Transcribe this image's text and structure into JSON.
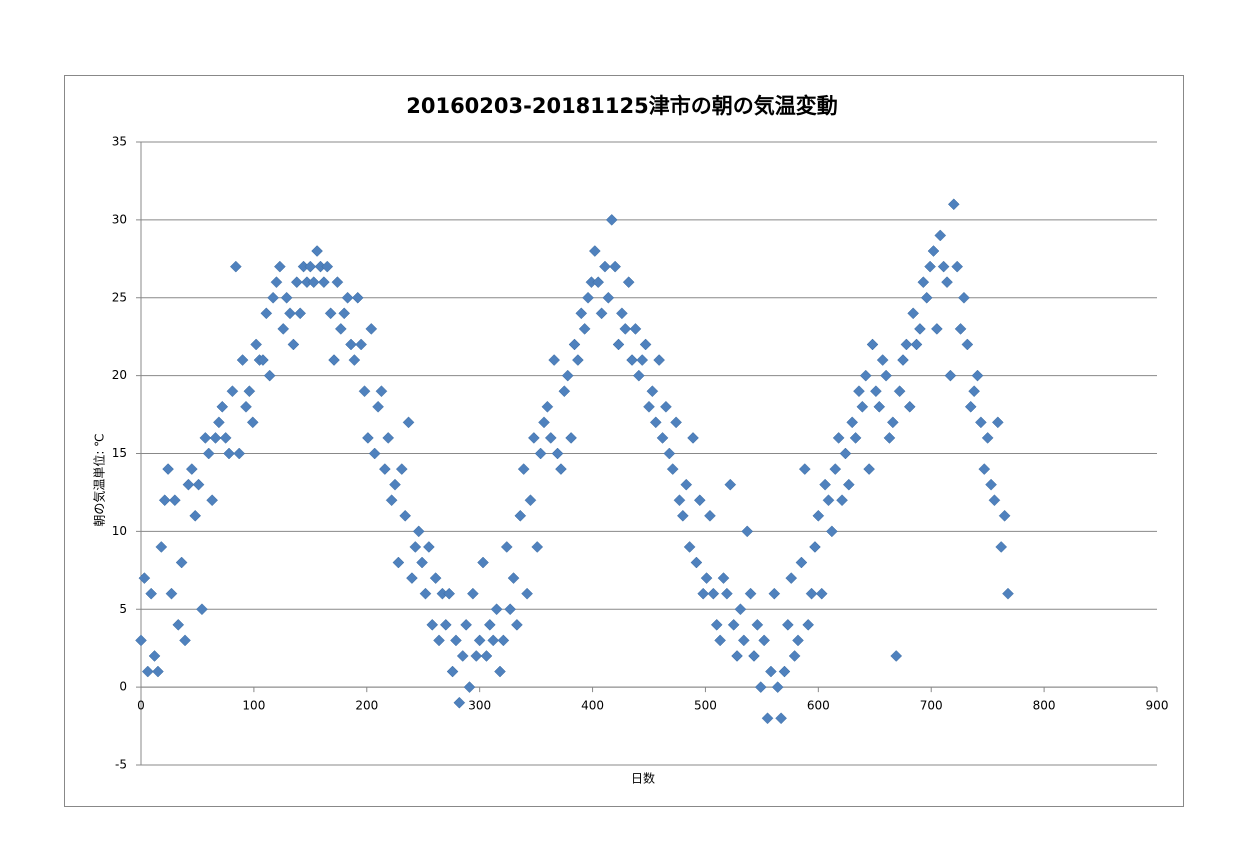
{
  "chart_data": {
    "type": "scatter",
    "title": "20160203-20181125津市の朝の気温変動",
    "x_label": "日数",
    "y_label": "朝の気温単位: ℃",
    "color": "#4f81bd",
    "grid": true,
    "xlim": [
      0,
      900
    ],
    "xticks": [
      0,
      100,
      200,
      300,
      400,
      500,
      600,
      700,
      800,
      900
    ],
    "ylim": [
      -5,
      35
    ],
    "yticks": [
      -5,
      0,
      5,
      10,
      15,
      20,
      25,
      30,
      35
    ],
    "x": [
      0,
      3,
      6,
      9,
      12,
      15,
      18,
      21,
      24,
      27,
      30,
      33,
      36,
      39,
      42,
      45,
      48,
      51,
      54,
      57,
      60,
      63,
      66,
      69,
      72,
      75,
      78,
      81,
      84,
      87,
      90,
      93,
      96,
      99,
      102,
      105,
      108,
      111,
      114,
      117,
      120,
      123,
      126,
      129,
      132,
      135,
      138,
      141,
      144,
      147,
      150,
      153,
      156,
      159,
      162,
      165,
      168,
      171,
      174,
      177,
      180,
      183,
      186,
      189,
      192,
      195,
      198,
      201,
      204,
      207,
      210,
      213,
      216,
      219,
      222,
      225,
      228,
      231,
      234,
      237,
      240,
      243,
      246,
      249,
      252,
      255,
      258,
      261,
      264,
      267,
      270,
      273,
      276,
      279,
      282,
      285,
      288,
      291,
      294,
      297,
      300,
      303,
      306,
      309,
      312,
      315,
      318,
      321,
      324,
      327,
      330,
      333,
      336,
      339,
      342,
      345,
      348,
      351,
      354,
      357,
      360,
      363,
      366,
      369,
      372,
      375,
      378,
      381,
      384,
      387,
      390,
      393,
      396,
      399,
      402,
      405,
      408,
      411,
      414,
      417,
      420,
      423,
      426,
      429,
      432,
      435,
      438,
      441,
      444,
      447,
      450,
      453,
      456,
      459,
      462,
      465,
      468,
      471,
      474,
      477,
      480,
      483,
      486,
      489,
      492,
      495,
      498,
      501,
      504,
      507,
      510,
      513,
      516,
      519,
      522,
      525,
      528,
      531,
      534,
      537,
      540,
      543,
      546,
      549,
      552,
      555,
      558,
      561,
      564,
      567,
      570,
      573,
      576,
      579,
      582,
      585,
      588,
      591,
      594,
      597,
      600,
      603,
      606,
      609,
      612,
      615,
      618,
      621,
      624,
      627,
      630,
      633,
      636,
      639,
      642,
      645,
      648,
      651,
      654,
      657,
      660,
      663,
      666,
      669,
      672,
      675,
      678,
      681,
      684,
      687,
      690,
      693,
      696,
      699,
      702,
      705,
      708,
      711,
      714,
      717,
      720,
      723,
      726,
      729,
      732,
      735,
      738,
      741,
      744,
      747,
      750,
      753,
      756,
      759,
      762,
      765,
      768
    ],
    "values": [
      3,
      7,
      1,
      6,
      2,
      1,
      9,
      12,
      14,
      6,
      12,
      4,
      8,
      3,
      13,
      14,
      11,
      13,
      5,
      16,
      15,
      12,
      16,
      17,
      18,
      16,
      15,
      19,
      27,
      15,
      21,
      18,
      19,
      17,
      22,
      21,
      21,
      24,
      20,
      25,
      26,
      27,
      23,
      25,
      24,
      22,
      26,
      24,
      27,
      26,
      27,
      26,
      28,
      27,
      26,
      27,
      24,
      21,
      26,
      23,
      24,
      25,
      22,
      21,
      25,
      22,
      19,
      16,
      23,
      15,
      18,
      19,
      14,
      16,
      12,
      13,
      8,
      14,
      11,
      17,
      7,
      9,
      10,
      8,
      6,
      9,
      4,
      7,
      3,
      6,
      4,
      6,
      1,
      3,
      -1,
      2,
      4,
      0,
      6,
      2,
      3,
      8,
      2,
      4,
      3,
      5,
      1,
      3,
      9,
      5,
      7,
      4,
      11,
      14,
      6,
      12,
      16,
      9,
      15,
      17,
      18,
      16,
      21,
      15,
      14,
      19,
      20,
      16,
      22,
      21,
      24,
      23,
      25,
      26,
      28,
      26,
      24,
      27,
      25,
      30,
      27,
      22,
      24,
      23,
      26,
      21,
      23,
      20,
      21,
      22,
      18,
      19,
      17,
      21,
      16,
      18,
      15,
      14,
      17,
      12,
      11,
      13,
      9,
      16,
      8,
      12,
      6,
      7,
      11,
      6,
      4,
      3,
      7,
      6,
      13,
      4,
      2,
      5,
      3,
      10,
      6,
      2,
      4,
      0,
      3,
      -2,
      1,
      6,
      0,
      -2,
      1,
      4,
      7,
      2,
      3,
      8,
      14,
      4,
      6,
      9,
      11,
      6,
      13,
      12,
      10,
      14,
      16,
      12,
      15,
      13,
      17,
      16,
      19,
      18,
      20,
      14,
      22,
      19,
      18,
      21,
      20,
      16,
      17,
      2,
      19,
      21,
      22,
      18,
      24,
      22,
      23,
      26,
      25,
      27,
      28,
      23,
      29,
      27,
      26,
      20,
      31,
      27,
      23,
      25,
      22,
      18,
      19,
      20,
      17,
      14,
      16,
      13,
      12,
      17,
      9,
      11,
      6
    ]
  }
}
